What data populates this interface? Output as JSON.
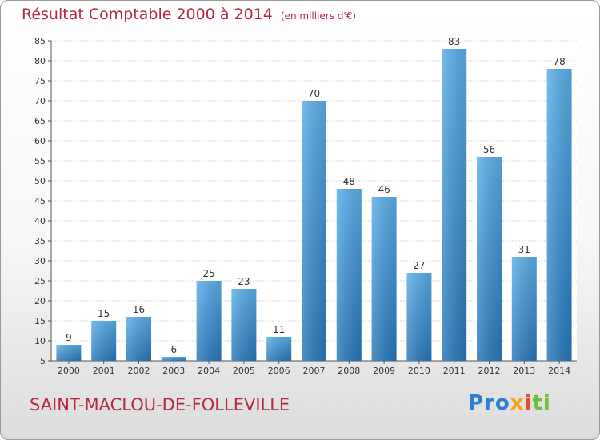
{
  "title": "Résultat Comptable 2000 à 2014",
  "subtitle": "(en milliers d'€)",
  "place_name": "SAINT-MACLOU-DE-FOLLEVILLE",
  "logo": {
    "text": "Proxiti",
    "parts": [
      "Pro",
      "x",
      "i",
      "ti"
    ]
  },
  "colors": {
    "title": "#b5283e",
    "bar_light": "#5aaee8",
    "bar_dark": "#2877b8"
  },
  "chart_data": {
    "type": "bar",
    "categories": [
      "2000",
      "2001",
      "2002",
      "2003",
      "2004",
      "2005",
      "2006",
      "2007",
      "2008",
      "2009",
      "2010",
      "2011",
      "2012",
      "2013",
      "2014"
    ],
    "values": [
      9,
      15,
      16,
      6,
      25,
      23,
      11,
      70,
      48,
      46,
      27,
      83,
      56,
      31,
      78
    ],
    "ylim": [
      5,
      85
    ],
    "yticks": [
      5,
      10,
      15,
      20,
      25,
      30,
      35,
      40,
      45,
      50,
      55,
      60,
      65,
      70,
      75,
      80,
      85
    ],
    "grid": true,
    "xlabel": "",
    "ylabel": ""
  }
}
